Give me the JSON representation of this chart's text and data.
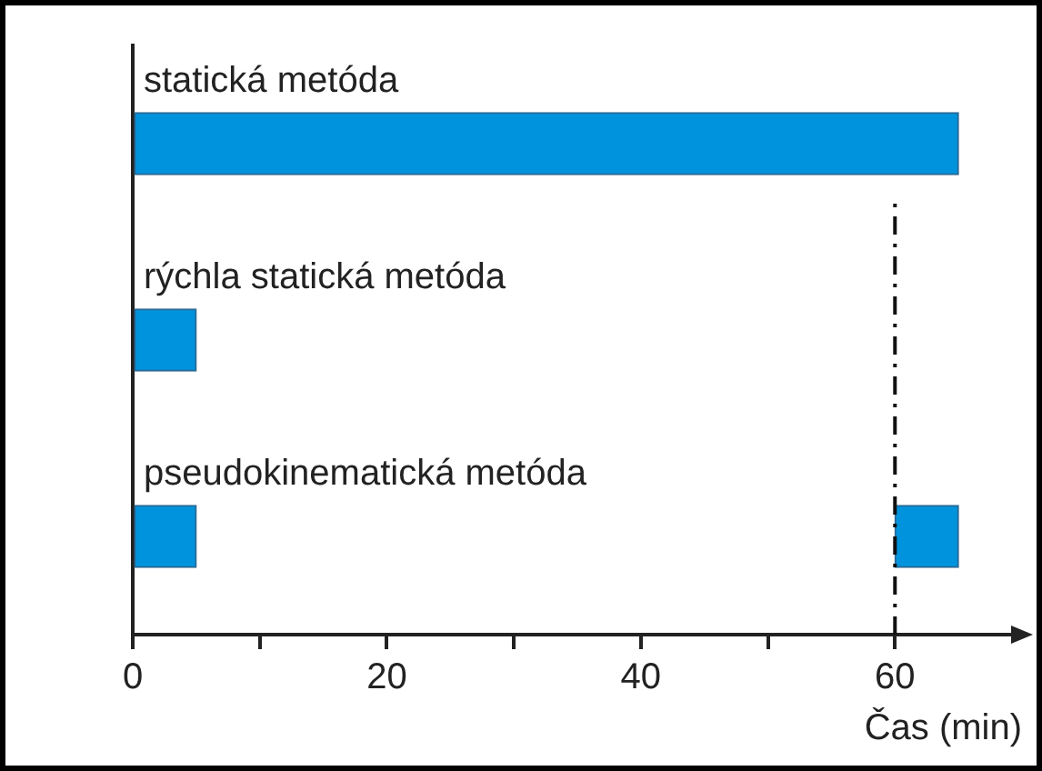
{
  "chart_data": {
    "type": "bar",
    "orientation": "horizontal",
    "categories": [
      "statická metóda",
      "rýchla statická metóda",
      "pseudokinematická metóda"
    ],
    "series": [
      {
        "color": "#0093dd",
        "values": [
          65,
          5,
          5
        ],
        "base": [
          0,
          0,
          0
        ]
      },
      {
        "color": "#0093dd",
        "values": [
          null,
          null,
          5
        ],
        "base": [
          null,
          null,
          60
        ]
      }
    ],
    "xlabel": "Čas (min)",
    "xlim": [
      0,
      70
    ],
    "xticks": [
      0,
      {
        "value": 10,
        "label": null
      },
      20,
      {
        "value": 30,
        "label": null
      },
      40,
      {
        "value": 50,
        "label": null
      },
      60
    ],
    "ref_lines": [
      {
        "axis": "x",
        "value": 60,
        "line_style": "dashdot",
        "color": "#111111"
      }
    ],
    "grid": false,
    "legend": false
  }
}
